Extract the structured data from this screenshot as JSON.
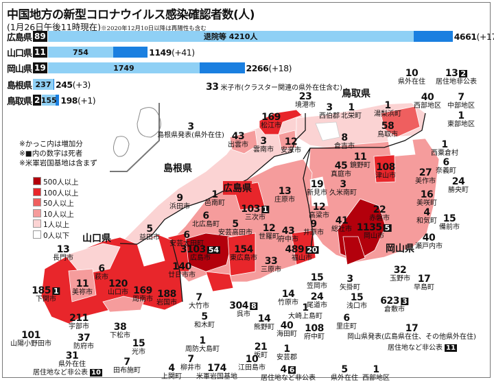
{
  "title": "中国地方の新型コロナウイルス感染確認者数(人)",
  "subtitle": "(1月26日午後11時現在)",
  "subtitle_note": "※2020年12月10日以降は再陽性も含む",
  "bars": [
    {
      "pref": "広島県",
      "deaths": "89",
      "recovered_label": "退院等 4210人",
      "recovered": 4210,
      "total": 4661,
      "total_label": "4661",
      "increase": "(+17)"
    },
    {
      "pref": "山口県",
      "deaths": "11",
      "recovered_label": "754",
      "recovered": 754,
      "total": 1149,
      "total_label": "1149",
      "increase": "(+41)"
    },
    {
      "pref": "岡山県",
      "deaths": "19",
      "recovered_label": "1749",
      "recovered": 1749,
      "total": 2266,
      "total_label": "2266",
      "increase": "(+18)"
    },
    {
      "pref": "島根県",
      "deaths": "",
      "recovered_label": "237",
      "recovered": 237,
      "total": 245,
      "total_label": "245",
      "increase": "(+3)"
    },
    {
      "pref": "鳥取県",
      "deaths": "2",
      "recovered_label": "155",
      "recovered": 155,
      "total": 198,
      "total_label": "198",
      "increase": "(+1)"
    }
  ],
  "bar_colors": {
    "recovered": "#8fd0f5",
    "active": "#1a7fe0"
  },
  "notes": [
    "※かっこ内は増加分",
    "※■内の数字は死者",
    "※米軍岩国基地は含まず"
  ],
  "legend": [
    {
      "label": "500人以上",
      "color": "#b3000c"
    },
    {
      "label": "100人以上",
      "color": "#e8262b"
    },
    {
      "label": "50人以上",
      "color": "#ef5f5f"
    },
    {
      "label": "10人以上",
      "color": "#f59c9c"
    },
    {
      "label": "1人以上",
      "color": "#fbd3d3"
    },
    {
      "label": "0人以下",
      "color": "#ffffff"
    }
  ],
  "prefecture_names": {
    "shimane": "島根県",
    "tottori": "鳥取県",
    "hiroshima": "広島県",
    "yamaguchi": "山口県",
    "okayama": "岡山県"
  },
  "map_labels": [
    {
      "count": "33",
      "name": "米子市(クラスター関連の県外在住含む)"
    },
    {
      "count": "10",
      "name": "県外在住"
    },
    {
      "count": "13",
      "deaths": "2",
      "name": "居住地非公表"
    },
    {
      "count": "23",
      "name": "境港市"
    },
    {
      "count": "1",
      "name": "湯梨浜町"
    },
    {
      "count": "40",
      "name": "西部地区"
    },
    {
      "count": "7",
      "name": "中部地区"
    },
    {
      "count": "1",
      "name": "東部地区"
    },
    {
      "count": "3",
      "name": "西伯郡"
    },
    {
      "count": "1",
      "name": "北栄町"
    },
    {
      "count": "169",
      "name": "松江市"
    },
    {
      "count": "3",
      "name": "島根県発表(県外在住)"
    },
    {
      "count": "58",
      "name": "鳥取市"
    },
    {
      "count": "43",
      "name": "出雲市"
    },
    {
      "count": "3",
      "name": "雲南市"
    },
    {
      "count": "12",
      "name": "安来市"
    },
    {
      "count": "8",
      "name": "倉吉市"
    },
    {
      "count": "1",
      "name": "西粟倉村"
    },
    {
      "count": "6",
      "name": "奈義町"
    },
    {
      "count": "11",
      "name": "鏡野町"
    },
    {
      "count": "45",
      "name": "真庭市"
    },
    {
      "count": "108",
      "name": "津山市"
    },
    {
      "count": "27",
      "name": "美作市"
    },
    {
      "count": "24",
      "name": "勝央町"
    },
    {
      "count": "3",
      "name": "久米南町"
    },
    {
      "count": "19",
      "name": "新見市"
    },
    {
      "count": "9",
      "name": "浜田市"
    },
    {
      "count": "1",
      "name": "邑南町"
    },
    {
      "count": "13",
      "name": "庄原市"
    },
    {
      "count": "16",
      "name": "美咲町"
    },
    {
      "count": "12",
      "name": "高梁市"
    },
    {
      "count": "22",
      "name": "赤磐市"
    },
    {
      "count": "4",
      "name": "和気町"
    },
    {
      "count": "15",
      "name": "備前市"
    },
    {
      "count": "103",
      "deaths": "1",
      "name": "三次市"
    },
    {
      "count": "6",
      "name": "北広島町"
    },
    {
      "count": "5",
      "name": "安芸高田市"
    },
    {
      "count": "5",
      "name": "益田市"
    },
    {
      "count": "6",
      "name": "安芸太田町"
    },
    {
      "count": "9",
      "name": "井原市"
    },
    {
      "count": "41",
      "name": "総社市"
    },
    {
      "count": "1135",
      "deaths": "5",
      "name": "岡山市"
    },
    {
      "count": "12",
      "name": "世羅町"
    },
    {
      "count": "43",
      "name": "府中市"
    },
    {
      "count": "40",
      "name": "瀬戸内市"
    },
    {
      "count": "489",
      "deaths": "20",
      "name": "福山市"
    },
    {
      "count": "3103",
      "deaths": "54",
      "name": "広島市"
    },
    {
      "count": "154",
      "name": "東広島市"
    },
    {
      "count": "33",
      "name": "三原市"
    },
    {
      "count": "13",
      "name": "長門市"
    },
    {
      "count": "140",
      "name": "廿日市市"
    },
    {
      "count": "6",
      "name": "萩市"
    },
    {
      "count": "32",
      "name": "玉野市"
    },
    {
      "count": "17",
      "name": "早島町"
    },
    {
      "count": "120",
      "name": "山口市"
    },
    {
      "count": "11",
      "name": "美祢市"
    },
    {
      "count": "169",
      "name": "周南市"
    },
    {
      "count": "188",
      "name": "岩国市"
    },
    {
      "count": "185",
      "deaths": "1",
      "name": "下関市"
    },
    {
      "count": "3",
      "name": "矢掛町"
    },
    {
      "count": "15",
      "name": "笠岡市"
    },
    {
      "count": "7",
      "name": "大竹市"
    },
    {
      "count": "14",
      "name": "竹原市"
    },
    {
      "count": "24",
      "name": "尾道市"
    },
    {
      "count": "15",
      "name": "浅口市"
    },
    {
      "count": "304",
      "deaths": "8",
      "name": "呉市"
    },
    {
      "count": "623",
      "deaths": "3",
      "name": "倉敷市"
    },
    {
      "count": "5",
      "name": "和木町"
    },
    {
      "count": "1",
      "name": "大崎上島町"
    },
    {
      "count": "211",
      "name": "宇部市"
    },
    {
      "count": "14",
      "name": "熊野町"
    },
    {
      "count": "40",
      "name": "海田町"
    },
    {
      "count": "108",
      "name": "府中町"
    },
    {
      "count": "6",
      "name": "里庄町"
    },
    {
      "count": "38",
      "name": "下松市"
    },
    {
      "count": "101",
      "name": "山陽小野田市"
    },
    {
      "count": "37",
      "name": "防府市"
    },
    {
      "count": "15",
      "name": "光市"
    },
    {
      "count": "17",
      "name": "岡山県発表(広島県在住、その他県外在住)"
    },
    {
      "count": "1",
      "name": "周防大島町"
    },
    {
      "count": "21",
      "name": "坂町"
    },
    {
      "count": "1",
      "name": "安芸郡"
    },
    {
      "count": "7",
      "name": "田布施町"
    },
    {
      "count": "31",
      "name": "県外在住"
    },
    {
      "count": "7",
      "name": "柳井市"
    },
    {
      "count": "10",
      "name": "江田島市"
    },
    {
      "count": "4",
      "name": "上関町"
    },
    {
      "count": "174",
      "name": "米軍岩国基地"
    },
    {
      "count": "4",
      "name": "居住地など非公表",
      "deaths": "6"
    },
    {
      "count": "5",
      "name": "県外在住"
    },
    {
      "count": "1",
      "name": "西部地区"
    }
  ],
  "undisclosed_notes": [
    {
      "text": "居住地など非公表",
      "deaths": "10"
    },
    {
      "text": "居住地など非公表",
      "deaths": "11"
    }
  ]
}
